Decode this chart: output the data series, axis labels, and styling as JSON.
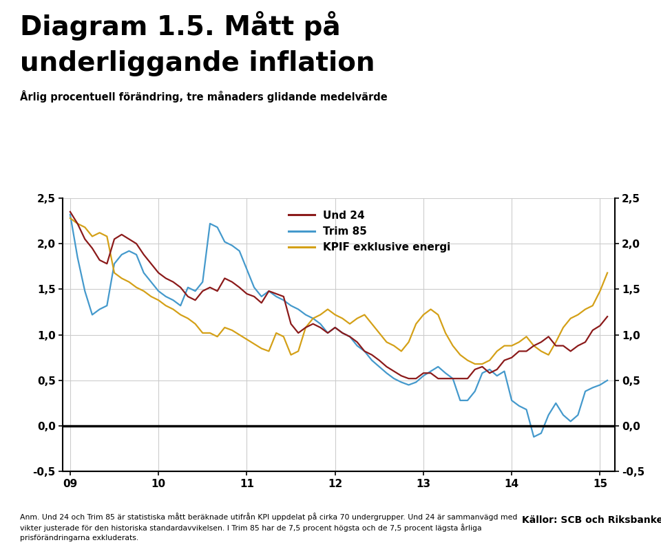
{
  "title_line1": "Diagram 1.5. Mått på",
  "title_line2": "underliggande inflation",
  "subtitle": "Årlig procentuell förändring, tre månaders glidande medelvärde",
  "legend_labels": [
    "Und 24",
    "Trim 85",
    "KPIF exklusive energi"
  ],
  "line_colors": [
    "#8B1A1A",
    "#4499CC",
    "#D4A017"
  ],
  "ylim": [
    -0.5,
    2.5
  ],
  "yticks": [
    -0.5,
    0.0,
    0.5,
    1.0,
    1.5,
    2.0,
    2.5
  ],
  "xtick_labels": [
    "09",
    "10",
    "11",
    "12",
    "13",
    "14",
    "15"
  ],
  "xtick_positions": [
    0,
    12,
    24,
    36,
    48,
    60,
    72
  ],
  "n_points": 74,
  "footer_text1": "Anm. Und 24 och Trim 85 är statistiska mått beräknade utifrån KPI uppdelat på cirka 70 undergrupper. Und 24 är sammanvägd med",
  "footer_text2": "vikter justerade för den historiska standardavvikelsen. I Trim 85 har de 7,5 procent högsta och de 7,5 procent lägsta årliga",
  "footer_text3": "prisförändringarna exkluderats.",
  "source_text": "Källor: SCB och Riksbanken",
  "logo_color": "#1C3F7A",
  "bar_color": "#1C3F7A",
  "und24": [
    2.35,
    2.22,
    2.05,
    1.95,
    1.82,
    1.78,
    2.05,
    2.1,
    2.05,
    2.0,
    1.88,
    1.78,
    1.68,
    1.62,
    1.58,
    1.52,
    1.42,
    1.38,
    1.48,
    1.52,
    1.48,
    1.62,
    1.58,
    1.52,
    1.45,
    1.42,
    1.35,
    1.48,
    1.45,
    1.42,
    1.12,
    1.02,
    1.08,
    1.12,
    1.08,
    1.02,
    1.08,
    1.02,
    0.98,
    0.92,
    0.82,
    0.78,
    0.72,
    0.65,
    0.6,
    0.55,
    0.52,
    0.52,
    0.58,
    0.58,
    0.52,
    0.52,
    0.52,
    0.52,
    0.52,
    0.62,
    0.65,
    0.58,
    0.62,
    0.72,
    0.75,
    0.82,
    0.82,
    0.88,
    0.92,
    0.98,
    0.88,
    0.88,
    0.82,
    0.88,
    0.92,
    1.05,
    1.1,
    1.2
  ],
  "trim85": [
    2.32,
    1.85,
    1.48,
    1.22,
    1.28,
    1.32,
    1.78,
    1.88,
    1.92,
    1.88,
    1.68,
    1.58,
    1.48,
    1.42,
    1.38,
    1.32,
    1.52,
    1.48,
    1.58,
    2.22,
    2.18,
    2.02,
    1.98,
    1.92,
    1.72,
    1.52,
    1.42,
    1.48,
    1.42,
    1.38,
    1.32,
    1.28,
    1.22,
    1.18,
    1.12,
    1.02,
    1.08,
    1.02,
    0.98,
    0.88,
    0.82,
    0.72,
    0.65,
    0.58,
    0.52,
    0.48,
    0.45,
    0.48,
    0.55,
    0.6,
    0.65,
    0.58,
    0.52,
    0.28,
    0.28,
    0.38,
    0.58,
    0.62,
    0.55,
    0.6,
    0.28,
    0.22,
    0.18,
    -0.12,
    -0.08,
    0.12,
    0.25,
    0.12,
    0.05,
    0.12,
    0.38,
    0.42,
    0.45,
    0.5
  ],
  "kpif": [
    2.28,
    2.22,
    2.18,
    2.08,
    2.12,
    2.08,
    1.68,
    1.62,
    1.58,
    1.52,
    1.48,
    1.42,
    1.38,
    1.32,
    1.28,
    1.22,
    1.18,
    1.12,
    1.02,
    1.02,
    0.98,
    1.08,
    1.05,
    1.0,
    0.95,
    0.9,
    0.85,
    0.82,
    1.02,
    0.98,
    0.78,
    0.82,
    1.08,
    1.18,
    1.22,
    1.28,
    1.22,
    1.18,
    1.12,
    1.18,
    1.22,
    1.12,
    1.02,
    0.92,
    0.88,
    0.82,
    0.92,
    1.12,
    1.22,
    1.28,
    1.22,
    1.02,
    0.88,
    0.78,
    0.72,
    0.68,
    0.68,
    0.72,
    0.82,
    0.88,
    0.88,
    0.92,
    0.98,
    0.88,
    0.82,
    0.78,
    0.92,
    1.08,
    1.18,
    1.22,
    1.28,
    1.32,
    1.48,
    1.68
  ]
}
